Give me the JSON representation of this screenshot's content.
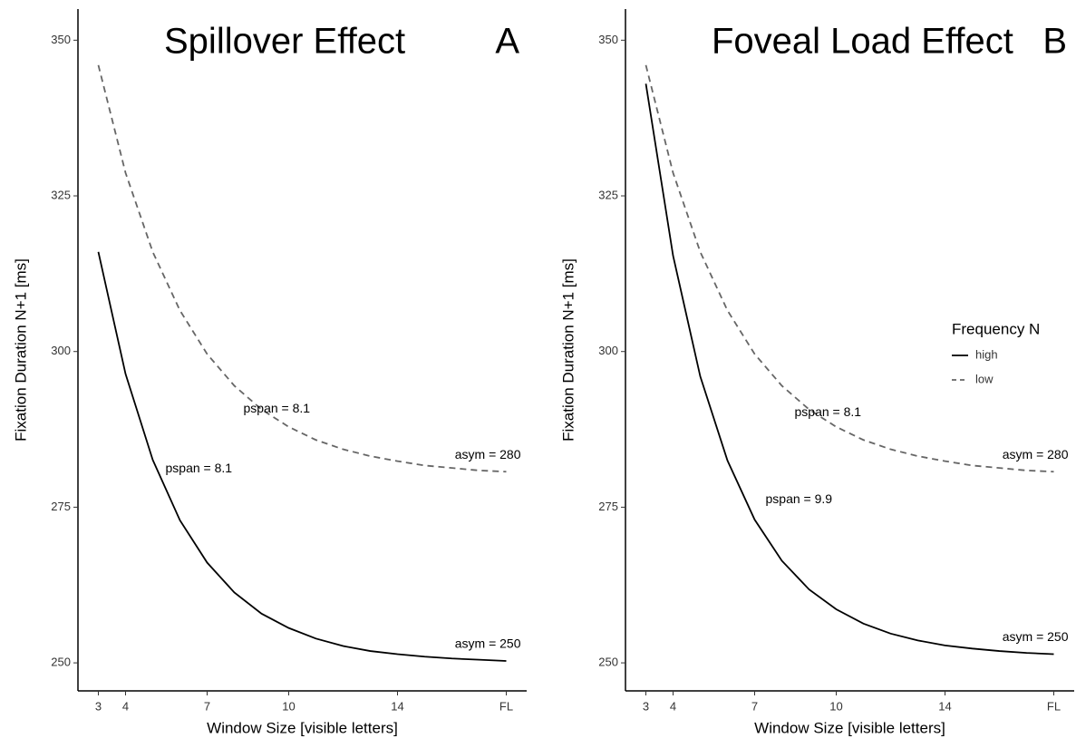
{
  "chart_data": [
    {
      "type": "line",
      "title": "Spillover Effect",
      "panel_label": "A",
      "xlabel": "Window Size [visible letters]",
      "ylabel": "Fixation Duration N+1 [ms]",
      "x": [
        3,
        4,
        5,
        6,
        7,
        8,
        9,
        10,
        11,
        12,
        13,
        14,
        15,
        16,
        17,
        18
      ],
      "xlim": [
        2.25,
        18.75
      ],
      "xticks": [
        3,
        4,
        7,
        10,
        14,
        {
          "value": 18,
          "label": "FL"
        }
      ],
      "ylim": [
        245.5,
        355
      ],
      "yticks": [
        250,
        275,
        300,
        325,
        350
      ],
      "series": [
        {
          "name": "high",
          "color": "#000000",
          "linestyle": "solid",
          "pspan_label": "pspan = 8.1",
          "asym_label": "asym = 250",
          "values": [
            316.0,
            296.4,
            282.6,
            272.9,
            266.1,
            261.3,
            257.9,
            255.6,
            253.9,
            252.7,
            251.9,
            251.4,
            251.0,
            250.7,
            250.5,
            250.3
          ]
        },
        {
          "name": "low",
          "color": "#666666",
          "linestyle": "dashed",
          "pspan_label": "pspan = 8.1",
          "asym_label": "asym = 280",
          "values": [
            346.0,
            328.7,
            316.0,
            306.6,
            299.6,
            294.5,
            290.7,
            287.9,
            285.8,
            284.3,
            283.2,
            282.4,
            281.7,
            281.3,
            280.9,
            280.7
          ]
        }
      ]
    },
    {
      "type": "line",
      "title": "Foveal Load Effect",
      "panel_label": "B",
      "xlabel": "Window Size [visible letters]",
      "ylabel": "Fixation Duration N+1 [ms]",
      "x": [
        3,
        4,
        5,
        6,
        7,
        8,
        9,
        10,
        11,
        12,
        13,
        14,
        15,
        16,
        17,
        18
      ],
      "xlim": [
        2.25,
        18.75
      ],
      "xticks": [
        3,
        4,
        7,
        10,
        14,
        {
          "value": 18,
          "label": "FL"
        }
      ],
      "ylim": [
        245.5,
        355
      ],
      "yticks": [
        250,
        275,
        300,
        325,
        350
      ],
      "legend": "right",
      "legend_title": "Frequency N",
      "series": [
        {
          "name": "high",
          "color": "#000000",
          "linestyle": "solid",
          "pspan_label": "pspan = 9.9",
          "asym_label": "asym = 250",
          "values": [
            343.0,
            315.4,
            296.0,
            282.5,
            273.0,
            266.4,
            261.8,
            258.6,
            256.3,
            254.7,
            253.6,
            252.8,
            252.3,
            251.9,
            251.6,
            251.4
          ]
        },
        {
          "name": "low",
          "color": "#666666",
          "linestyle": "dashed",
          "pspan_label": "pspan = 8.1",
          "asym_label": "asym = 280",
          "values": [
            346.0,
            328.7,
            316.0,
            306.6,
            299.6,
            294.5,
            290.7,
            287.9,
            285.8,
            284.3,
            283.2,
            282.4,
            281.7,
            281.3,
            280.9,
            280.7
          ]
        }
      ]
    }
  ]
}
